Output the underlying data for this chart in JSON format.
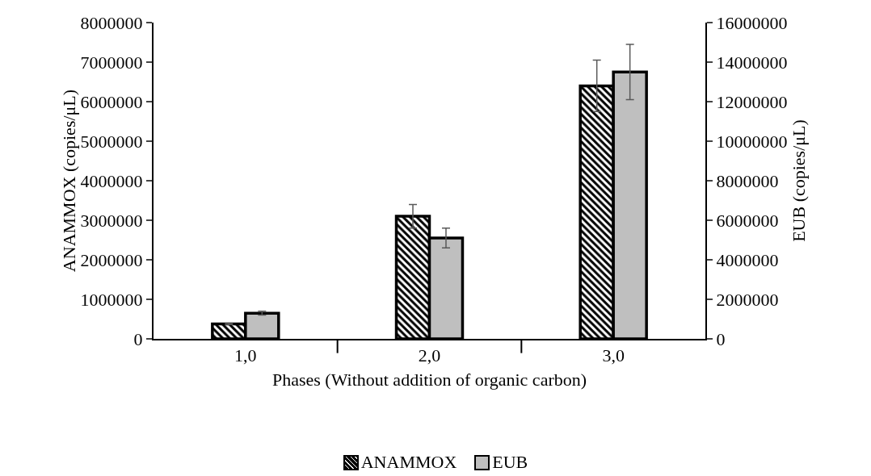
{
  "chart_data": {
    "type": "bar",
    "xlabel": "Phases (Without addition of organic carbon)",
    "ylabel": "ANAMMOX (copies/μL)",
    "y2label": "EUB (copies/μL)",
    "categories": [
      "1,0",
      "2,0",
      "3,0"
    ],
    "series": [
      {
        "name": "ANAMMOX",
        "color": "#000000",
        "values": [
          380000,
          3100000,
          6400000
        ],
        "errors": [
          20000,
          300000,
          650000
        ]
      },
      {
        "name": "EUB",
        "color": "#bfbfbf",
        "axis": "y2",
        "values": [
          1300000,
          5100000,
          13500000
        ],
        "errors": [
          100000,
          500000,
          1400000
        ]
      }
    ],
    "ylim": [
      0,
      8000000
    ],
    "yticks": [
      0,
      1000000,
      2000000,
      3000000,
      4000000,
      5000000,
      6000000,
      7000000,
      8000000
    ],
    "y2lim": [
      0,
      16000000
    ],
    "y2ticks": [
      0,
      2000000,
      4000000,
      6000000,
      8000000,
      10000000,
      12000000,
      14000000,
      16000000
    ],
    "grid": false,
    "legend": "bottom"
  }
}
